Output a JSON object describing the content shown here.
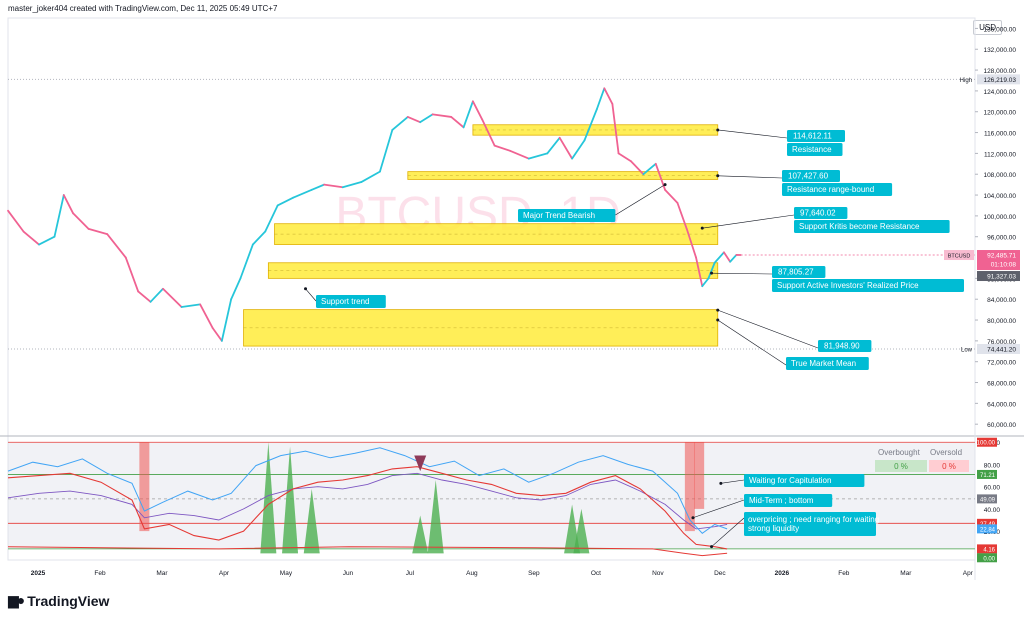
{
  "header": {
    "credit": "master_joker404 created with TradingView.com, Dec 11, 2025 05:49 UTC+7"
  },
  "currency": "USD",
  "watermark": "BTCUSD, 1D",
  "footer": {
    "brand": "TradingView"
  },
  "colors": {
    "up": "#26c6da",
    "down": "#f06292",
    "zone": "#ffeb3b",
    "zone_border": "#e0b000",
    "callout": "#00bcd4",
    "rsi_line": "#42a5f5",
    "red_line": "#e53935",
    "purple_line": "#7e57c2",
    "green_fill": "#4caf50",
    "red_fill": "#ef5350"
  },
  "chart_data": [
    {
      "type": "line",
      "name": "BTCUSD daily price",
      "x_ticks": [
        "2025",
        "Feb",
        "Mar",
        "Apr",
        "May",
        "Jun",
        "Jul",
        "Aug",
        "Sep",
        "Oct",
        "Nov",
        "Dec",
        "2026",
        "Feb",
        "Mar",
        "Apr"
      ],
      "y_ticks": [
        "136,000.00",
        "132,000.00",
        "128,000.00",
        "124,000.00",
        "120,000.00",
        "116,000.00",
        "112,000.00",
        "108,000.00",
        "104,000.00",
        "100,000.00",
        "96,000.00",
        "88,000.00",
        "84,000.00",
        "80,000.00",
        "76,000.00",
        "72,000.00",
        "68,000.00",
        "64,000.00",
        "60,000.00"
      ],
      "ylim": [
        58500,
        138000
      ],
      "xlim": [
        0,
        15.6
      ],
      "series": [
        {
          "values": [
            [
              0,
              101000
            ],
            [
              0.25,
              97000
            ],
            [
              0.5,
              94500
            ],
            [
              0.75,
              96000
            ],
            [
              0.9,
              104000
            ],
            [
              1.05,
              100500
            ],
            [
              1.3,
              97500
            ],
            [
              1.6,
              96500
            ],
            [
              1.9,
              92000
            ],
            [
              2.1,
              85500
            ],
            [
              2.3,
              83500
            ],
            [
              2.5,
              86000
            ],
            [
              2.8,
              82500
            ],
            [
              3.1,
              83000
            ],
            [
              3.3,
              78500
            ],
            [
              3.45,
              76000
            ],
            [
              3.6,
              84000
            ],
            [
              3.75,
              88000
            ],
            [
              3.95,
              94500
            ],
            [
              4.15,
              97000
            ],
            [
              4.35,
              102000
            ],
            [
              4.6,
              103500
            ],
            [
              4.9,
              105000
            ],
            [
              5.1,
              106000
            ],
            [
              5.4,
              105500
            ],
            [
              5.7,
              106500
            ],
            [
              6.0,
              108500
            ],
            [
              6.2,
              116500
            ],
            [
              6.45,
              119000
            ],
            [
              6.65,
              118000
            ],
            [
              6.85,
              119500
            ],
            [
              7.15,
              119000
            ],
            [
              7.35,
              117000
            ],
            [
              7.5,
              122000
            ],
            [
              7.65,
              118500
            ],
            [
              7.85,
              113500
            ],
            [
              8.1,
              112500
            ],
            [
              8.4,
              111000
            ],
            [
              8.7,
              112000
            ],
            [
              8.9,
              115000
            ],
            [
              9.1,
              111000
            ],
            [
              9.3,
              114500
            ],
            [
              9.5,
              120500
            ],
            [
              9.62,
              124500
            ],
            [
              9.75,
              121500
            ],
            [
              9.85,
              112000
            ],
            [
              10.05,
              110500
            ],
            [
              10.25,
              108000
            ],
            [
              10.45,
              110000
            ],
            [
              10.6,
              105000
            ],
            [
              10.8,
              102500
            ],
            [
              10.95,
              97500
            ],
            [
              11.1,
              92000
            ],
            [
              11.2,
              86500
            ],
            [
              11.3,
              88000
            ],
            [
              11.4,
              91000
            ],
            [
              11.55,
              93000
            ],
            [
              11.65,
              91200
            ],
            [
              11.75,
              92500
            ],
            [
              11.82,
              92485
            ]
          ]
        }
      ],
      "last_price": "92,485.71",
      "countdown": "01:10:08",
      "ref_price": "91,327.03",
      "high": {
        "label": "High",
        "value": "126,219.03",
        "y": 126219
      },
      "low": {
        "label": "Low",
        "value": "74,441.20",
        "y": 74441
      },
      "symbol_tag": "BTCUSD",
      "zones": [
        {
          "x0": 7.5,
          "x1": 11.45,
          "y0": 115500,
          "y1": 117500
        },
        {
          "x0": 6.45,
          "x1": 11.45,
          "y0": 107000,
          "y1": 108500
        },
        {
          "x0": 4.3,
          "x1": 11.45,
          "y0": 94500,
          "y1": 98500
        },
        {
          "x0": 4.2,
          "x1": 11.45,
          "y0": 88000,
          "y1": 91000
        },
        {
          "x0": 3.8,
          "x1": 11.45,
          "y0": 75000,
          "y1": 82000
        }
      ],
      "annotations": [
        {
          "price": "114,612.11",
          "label": "Resistance",
          "ax": 11.45,
          "ay": 116500
        },
        {
          "price": "107,427.60",
          "label": "Resistance range-bound",
          "ax": 11.45,
          "ay": 107700
        },
        {
          "price": "97,640.02",
          "label": "Support Kritis become Resistance",
          "ax": 11.2,
          "ay": 97640
        },
        {
          "price": "87,805.27",
          "label": "Support Active Investors' Realized Price",
          "ax": 11.35,
          "ay": 89000
        },
        {
          "price": "81,948.90",
          "label": "",
          "ax": 11.45,
          "ay": 81900
        },
        {
          "price": "",
          "label": "True Market Mean",
          "ax": 11.45,
          "ay": 80000
        }
      ],
      "plain_labels": [
        {
          "label": "Major Trend Bearish",
          "ax": 10.6,
          "ay": 106000
        },
        {
          "label": "Support trend",
          "ax": 4.8,
          "ay": 86000
        }
      ]
    },
    {
      "type": "line",
      "name": "Oscillator panel",
      "ylim": [
        -6,
        102
      ],
      "y_ticks": [
        "100.00",
        "80.00",
        "60.00",
        "40.00",
        "20.00"
      ],
      "legend": [
        "Overbought",
        "Oversold"
      ],
      "legend_values": [
        "0 %",
        "0 %"
      ],
      "value_tags": [
        {
          "value": "100.00",
          "y": 100,
          "color": "#e53935"
        },
        {
          "value": "71.21",
          "y": 71,
          "color": "#43a047"
        },
        {
          "value": "49.09",
          "y": 49,
          "color": "#787b86"
        },
        {
          "value": "27.49",
          "y": 27,
          "color": "#e53935"
        },
        {
          "value": "22.84",
          "y": 22,
          "color": "#42a5f5"
        },
        {
          "value": "4.16",
          "y": 4,
          "color": "#e53935"
        },
        {
          "value": "0.00",
          "y": -4,
          "color": "#43a047"
        }
      ],
      "blue_line": [
        [
          0,
          74
        ],
        [
          0.4,
          82
        ],
        [
          0.8,
          78
        ],
        [
          1.2,
          85
        ],
        [
          1.6,
          72
        ],
        [
          2.0,
          63
        ],
        [
          2.2,
          38
        ],
        [
          2.5,
          46
        ],
        [
          2.9,
          56
        ],
        [
          3.3,
          48
        ],
        [
          3.6,
          54
        ],
        [
          4.0,
          79
        ],
        [
          4.4,
          88
        ],
        [
          4.8,
          92
        ],
        [
          5.2,
          86
        ],
        [
          5.6,
          90
        ],
        [
          6.0,
          95
        ],
        [
          6.4,
          88
        ],
        [
          6.8,
          78
        ],
        [
          7.2,
          83
        ],
        [
          7.6,
          70
        ],
        [
          8.0,
          76
        ],
        [
          8.4,
          64
        ],
        [
          8.8,
          72
        ],
        [
          9.2,
          82
        ],
        [
          9.6,
          88
        ],
        [
          10.0,
          80
        ],
        [
          10.4,
          74
        ],
        [
          10.8,
          54
        ],
        [
          11.0,
          30
        ],
        [
          11.2,
          18
        ],
        [
          11.4,
          26
        ],
        [
          11.6,
          22
        ]
      ],
      "red_line": [
        [
          0,
          68
        ],
        [
          0.5,
          70
        ],
        [
          1.0,
          72
        ],
        [
          1.5,
          64
        ],
        [
          2.0,
          48
        ],
        [
          2.2,
          22
        ],
        [
          2.6,
          26
        ],
        [
          3.0,
          16
        ],
        [
          3.4,
          12
        ],
        [
          3.8,
          20
        ],
        [
          4.2,
          44
        ],
        [
          4.6,
          58
        ],
        [
          5.0,
          64
        ],
        [
          5.4,
          66
        ],
        [
          5.8,
          70
        ],
        [
          6.2,
          76
        ],
        [
          6.6,
          78
        ],
        [
          7.0,
          72
        ],
        [
          7.4,
          66
        ],
        [
          7.8,
          62
        ],
        [
          8.2,
          54
        ],
        [
          8.6,
          52
        ],
        [
          9.0,
          54
        ],
        [
          9.4,
          64
        ],
        [
          9.8,
          70
        ],
        [
          10.2,
          58
        ],
        [
          10.6,
          38
        ],
        [
          10.9,
          18
        ],
        [
          11.1,
          8
        ],
        [
          11.4,
          6
        ],
        [
          11.6,
          4
        ]
      ],
      "purple_line": [
        [
          0,
          50
        ],
        [
          0.5,
          54
        ],
        [
          1.0,
          56
        ],
        [
          1.5,
          52
        ],
        [
          2.0,
          44
        ],
        [
          2.2,
          32
        ],
        [
          2.6,
          36
        ],
        [
          3.0,
          34
        ],
        [
          3.4,
          30
        ],
        [
          3.8,
          40
        ],
        [
          4.2,
          52
        ],
        [
          4.6,
          58
        ],
        [
          5.0,
          60
        ],
        [
          5.4,
          58
        ],
        [
          5.8,
          62
        ],
        [
          6.2,
          70
        ],
        [
          6.6,
          72
        ],
        [
          7.0,
          66
        ],
        [
          7.4,
          62
        ],
        [
          7.8,
          56
        ],
        [
          8.2,
          50
        ],
        [
          8.6,
          48
        ],
        [
          9.0,
          52
        ],
        [
          9.4,
          62
        ],
        [
          9.8,
          66
        ],
        [
          10.2,
          56
        ],
        [
          10.6,
          44
        ],
        [
          10.9,
          30
        ],
        [
          11.1,
          22
        ],
        [
          11.4,
          24
        ],
        [
          11.6,
          26
        ]
      ],
      "bottom_line": [
        [
          0,
          6
        ],
        [
          3.4,
          4
        ],
        [
          5.5,
          6
        ],
        [
          8.5,
          5
        ],
        [
          10.4,
          4
        ],
        [
          10.9,
          0
        ],
        [
          11.2,
          -2
        ],
        [
          11.6,
          0
        ]
      ],
      "levels": [
        {
          "y": 100,
          "color": "#e53935"
        },
        {
          "y": 71,
          "color": "#43a047"
        },
        {
          "y": 49,
          "color": "#9e9e9e"
        },
        {
          "y": 27,
          "color": "#e53935"
        },
        {
          "y": 4,
          "color": "#43a047"
        }
      ],
      "green_spikes": [
        [
          4.2,
          100
        ],
        [
          4.55,
          96
        ],
        [
          4.9,
          58
        ],
        [
          6.65,
          34
        ],
        [
          6.9,
          66
        ],
        [
          9.1,
          44
        ],
        [
          9.25,
          40
        ]
      ],
      "red_spikes": [
        [
          2.2,
          100
        ],
        [
          11.0,
          100
        ],
        [
          11.15,
          82
        ]
      ],
      "annotations": [
        {
          "label": "Waiting for Capitulation",
          "ax": 11.5,
          "ay": 63
        },
        {
          "label": "Mid-Term ; bottom",
          "ax": 11.05,
          "ay": 32
        },
        {
          "label": "overpricing ; need ranging for waiting strong liquidity",
          "ax": 11.35,
          "ay": 6
        }
      ]
    }
  ]
}
